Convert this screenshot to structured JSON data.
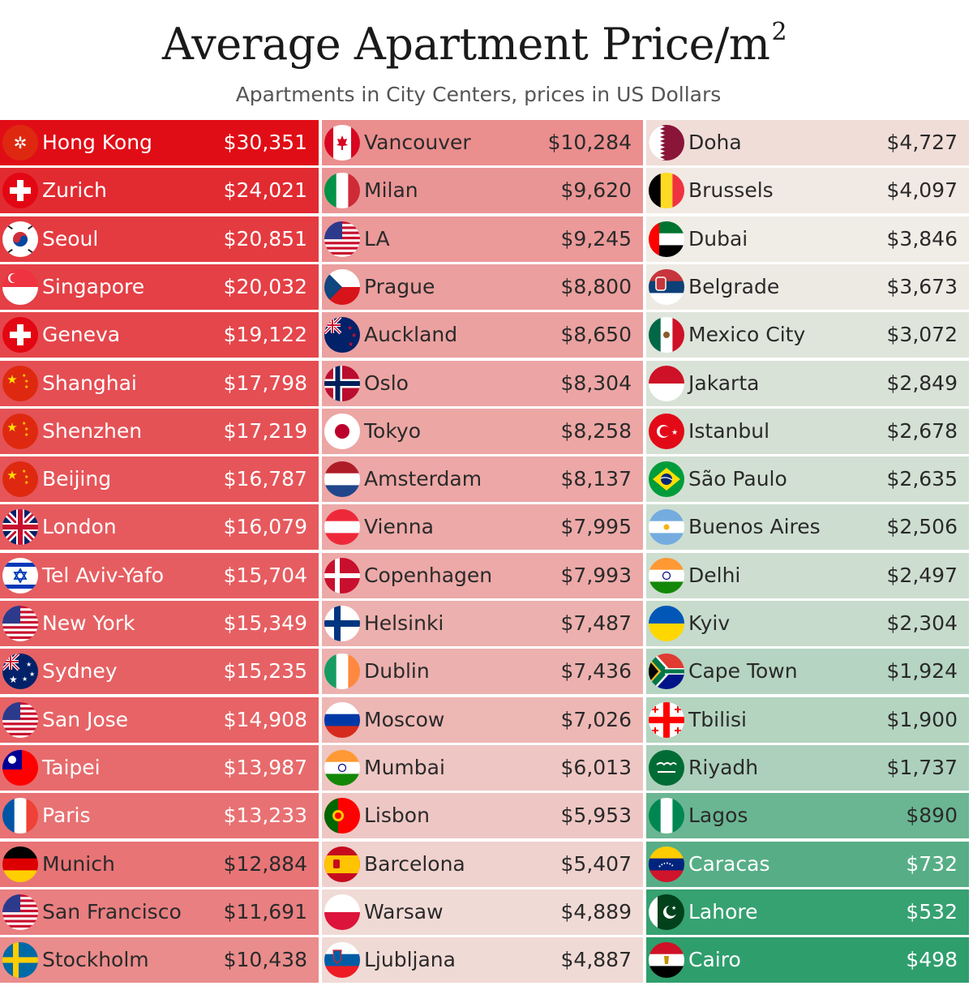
{
  "header": {
    "title": "Average Apartment Price/m",
    "title_sup": "2",
    "subtitle": "Apartments in City Centers, prices in US Dollars"
  },
  "chart_data": {
    "type": "table",
    "title": "Average Apartment Price/m²",
    "subtitle": "Apartments in City Centers, prices in US Dollars",
    "unit": "USD per m²",
    "columns": [
      [
        {
          "city": "Hong Kong",
          "price": "$30,351",
          "value": 30351,
          "flag": "hongkong-flag-icon"
        },
        {
          "city": "Zurich",
          "price": "$24,021",
          "value": 24021,
          "flag": "switzerland-flag-icon"
        },
        {
          "city": "Seoul",
          "price": "$20,851",
          "value": 20851,
          "flag": "southkorea-flag-icon"
        },
        {
          "city": "Singapore",
          "price": "$20,032",
          "value": 20032,
          "flag": "singapore-flag-icon"
        },
        {
          "city": "Geneva",
          "price": "$19,122",
          "value": 19122,
          "flag": "switzerland-flag-icon"
        },
        {
          "city": "Shanghai",
          "price": "$17,798",
          "value": 17798,
          "flag": "china-flag-icon"
        },
        {
          "city": "Shenzhen",
          "price": "$17,219",
          "value": 17219,
          "flag": "china-flag-icon"
        },
        {
          "city": "Beijing",
          "price": "$16,787",
          "value": 16787,
          "flag": "china-flag-icon"
        },
        {
          "city": "London",
          "price": "$16,079",
          "value": 16079,
          "flag": "uk-flag-icon"
        },
        {
          "city": "Tel Aviv-Yafo",
          "price": "$15,704",
          "value": 15704,
          "flag": "israel-flag-icon"
        },
        {
          "city": "New York",
          "price": "$15,349",
          "value": 15349,
          "flag": "usa-flag-icon"
        },
        {
          "city": "Sydney",
          "price": "$15,235",
          "value": 15235,
          "flag": "australia-flag-icon"
        },
        {
          "city": "San Jose",
          "price": "$14,908",
          "value": 14908,
          "flag": "usa-flag-icon"
        },
        {
          "city": "Taipei",
          "price": "$13,987",
          "value": 13987,
          "flag": "taiwan-flag-icon"
        },
        {
          "city": "Paris",
          "price": "$13,233",
          "value": 13233,
          "flag": "france-flag-icon"
        },
        {
          "city": "Munich",
          "price": "$12,884",
          "value": 12884,
          "flag": "germany-flag-icon"
        },
        {
          "city": "San Francisco",
          "price": "$11,691",
          "value": 11691,
          "flag": "usa-flag-icon"
        },
        {
          "city": "Stockholm",
          "price": "$10,438",
          "value": 10438,
          "flag": "sweden-flag-icon"
        }
      ],
      [
        {
          "city": "Vancouver",
          "price": "$10,284",
          "value": 10284,
          "flag": "canada-flag-icon"
        },
        {
          "city": "Milan",
          "price": "$9,620",
          "value": 9620,
          "flag": "italy-flag-icon"
        },
        {
          "city": "LA",
          "price": "$9,245",
          "value": 9245,
          "flag": "usa-flag-icon"
        },
        {
          "city": "Prague",
          "price": "$8,800",
          "value": 8800,
          "flag": "czechia-flag-icon"
        },
        {
          "city": "Auckland",
          "price": "$8,650",
          "value": 8650,
          "flag": "newzealand-flag-icon"
        },
        {
          "city": "Oslo",
          "price": "$8,304",
          "value": 8304,
          "flag": "norway-flag-icon"
        },
        {
          "city": "Tokyo",
          "price": "$8,258",
          "value": 8258,
          "flag": "japan-flag-icon"
        },
        {
          "city": "Amsterdam",
          "price": "$8,137",
          "value": 8137,
          "flag": "netherlands-flag-icon"
        },
        {
          "city": "Vienna",
          "price": "$7,995",
          "value": 7995,
          "flag": "austria-flag-icon"
        },
        {
          "city": "Copenhagen",
          "price": "$7,993",
          "value": 7993,
          "flag": "denmark-flag-icon"
        },
        {
          "city": "Helsinki",
          "price": "$7,487",
          "value": 7487,
          "flag": "finland-flag-icon"
        },
        {
          "city": "Dublin",
          "price": "$7,436",
          "value": 7436,
          "flag": "ireland-flag-icon"
        },
        {
          "city": "Moscow",
          "price": "$7,026",
          "value": 7026,
          "flag": "russia-flag-icon"
        },
        {
          "city": "Mumbai",
          "price": "$6,013",
          "value": 6013,
          "flag": "india-flag-icon"
        },
        {
          "city": "Lisbon",
          "price": "$5,953",
          "value": 5953,
          "flag": "portugal-flag-icon"
        },
        {
          "city": "Barcelona",
          "price": "$5,407",
          "value": 5407,
          "flag": "spain-flag-icon"
        },
        {
          "city": "Warsaw",
          "price": "$4,889",
          "value": 4889,
          "flag": "poland-flag-icon"
        },
        {
          "city": "Ljubljana",
          "price": "$4,887",
          "value": 4887,
          "flag": "slovenia-flag-icon"
        }
      ],
      [
        {
          "city": "Doha",
          "price": "$4,727",
          "value": 4727,
          "flag": "qatar-flag-icon"
        },
        {
          "city": "Brussels",
          "price": "$4,097",
          "value": 4097,
          "flag": "belgium-flag-icon"
        },
        {
          "city": "Dubai",
          "price": "$3,846",
          "value": 3846,
          "flag": "uae-flag-icon"
        },
        {
          "city": "Belgrade",
          "price": "$3,673",
          "value": 3673,
          "flag": "serbia-flag-icon"
        },
        {
          "city": "Mexico City",
          "price": "$3,072",
          "value": 3072,
          "flag": "mexico-flag-icon"
        },
        {
          "city": "Jakarta",
          "price": "$2,849",
          "value": 2849,
          "flag": "indonesia-flag-icon"
        },
        {
          "city": "Istanbul",
          "price": "$2,678",
          "value": 2678,
          "flag": "turkey-flag-icon"
        },
        {
          "city": "São Paulo",
          "price": "$2,635",
          "value": 2635,
          "flag": "brazil-flag-icon"
        },
        {
          "city": "Buenos Aires",
          "price": "$2,506",
          "value": 2506,
          "flag": "argentina-flag-icon"
        },
        {
          "city": "Delhi",
          "price": "$2,497",
          "value": 2497,
          "flag": "india-flag-icon"
        },
        {
          "city": "Kyiv",
          "price": "$2,304",
          "value": 2304,
          "flag": "ukraine-flag-icon"
        },
        {
          "city": "Cape Town",
          "price": "$1,924",
          "value": 1924,
          "flag": "southafrica-flag-icon"
        },
        {
          "city": "Tbilisi",
          "price": "$1,900",
          "value": 1900,
          "flag": "georgia-flag-icon"
        },
        {
          "city": "Riyadh",
          "price": "$1,737",
          "value": 1737,
          "flag": "saudiarabia-flag-icon"
        },
        {
          "city": "Lagos",
          "price": "$890",
          "value": 890,
          "flag": "nigeria-flag-icon"
        },
        {
          "city": "Caracas",
          "price": "$732",
          "value": 732,
          "flag": "venezuela-flag-icon"
        },
        {
          "city": "Lahore",
          "price": "$532",
          "value": 532,
          "flag": "pakistan-flag-icon"
        },
        {
          "city": "Cairo",
          "price": "$498",
          "value": 498,
          "flag": "egypt-flag-icon"
        }
      ]
    ],
    "colors": {
      "high": "#e00d16",
      "mid": "#f1ece6",
      "low": "#2f9e6d"
    }
  }
}
